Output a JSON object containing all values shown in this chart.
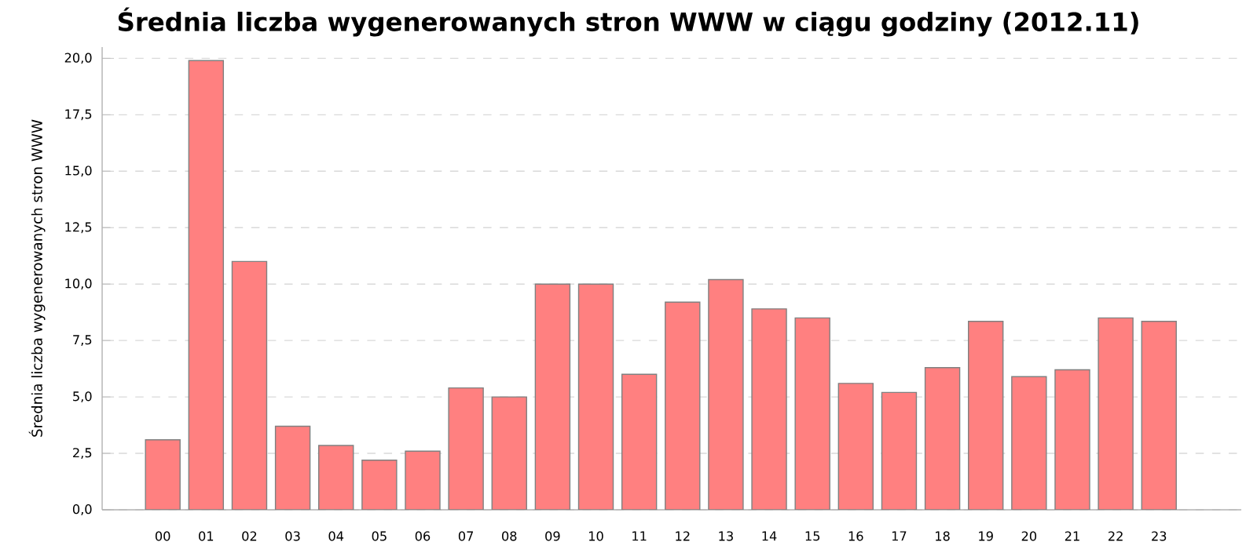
{
  "chart_data": {
    "type": "bar",
    "title": "Średnia liczba wygenerowanych stron WWW w ciągu godziny (2012.11)",
    "ylabel": "Średnia liczba wygenerowanych stron WWW",
    "categories": [
      "00",
      "01",
      "02",
      "03",
      "04",
      "05",
      "06",
      "07",
      "08",
      "09",
      "10",
      "11",
      "12",
      "13",
      "14",
      "15",
      "16",
      "17",
      "18",
      "19",
      "20",
      "21",
      "22",
      "23"
    ],
    "values": [
      3.1,
      19.9,
      11.0,
      3.7,
      2.85,
      2.2,
      2.6,
      5.4,
      5.0,
      10.0,
      10.0,
      6.0,
      9.2,
      10.2,
      8.9,
      8.5,
      5.6,
      5.2,
      6.3,
      8.35,
      5.9,
      6.2,
      8.5,
      8.35
    ],
    "color": "#ff8080",
    "ylim": [
      0,
      20.5
    ],
    "yticks": [
      {
        "value": 0,
        "label": "0,0"
      },
      {
        "value": 2.5,
        "label": "2,5"
      },
      {
        "value": 5,
        "label": "5,0"
      },
      {
        "value": 7.5,
        "label": "7,5"
      },
      {
        "value": 10,
        "label": "10,0"
      },
      {
        "value": 12.5,
        "label": "12,5"
      },
      {
        "value": 15,
        "label": "15,0"
      },
      {
        "value": 17.5,
        "label": "17,5"
      },
      {
        "value": 20,
        "label": "20,0"
      }
    ],
    "grid": "y"
  }
}
